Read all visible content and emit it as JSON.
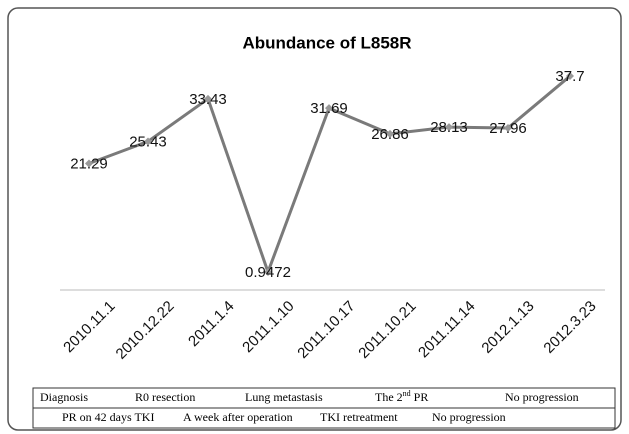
{
  "chart_data": {
    "type": "line",
    "title": "Abundance of L858R",
    "categories": [
      "2010.11.1",
      "2010.12.22",
      "2011.1.4",
      "2011.1.10",
      "2011.10.17",
      "2011.10.21",
      "2011.11.14",
      "2012.1.13",
      "2012.3.23"
    ],
    "values": [
      21.29,
      25.43,
      33.43,
      0.9472,
      31.69,
      26.86,
      28.13,
      27.96,
      37.7
    ],
    "color": "#7a7a7a"
  },
  "table": {
    "rows": [
      [
        "Diagnosis",
        "R0 resection",
        "Lung metastasis",
        {
          "pre": "The 2",
          "sup": "nd",
          "post": " PR"
        },
        "No progression"
      ],
      [
        "PR on 42 days TKI",
        "A week after operation",
        "TKI retreatment",
        "No progression"
      ]
    ]
  }
}
